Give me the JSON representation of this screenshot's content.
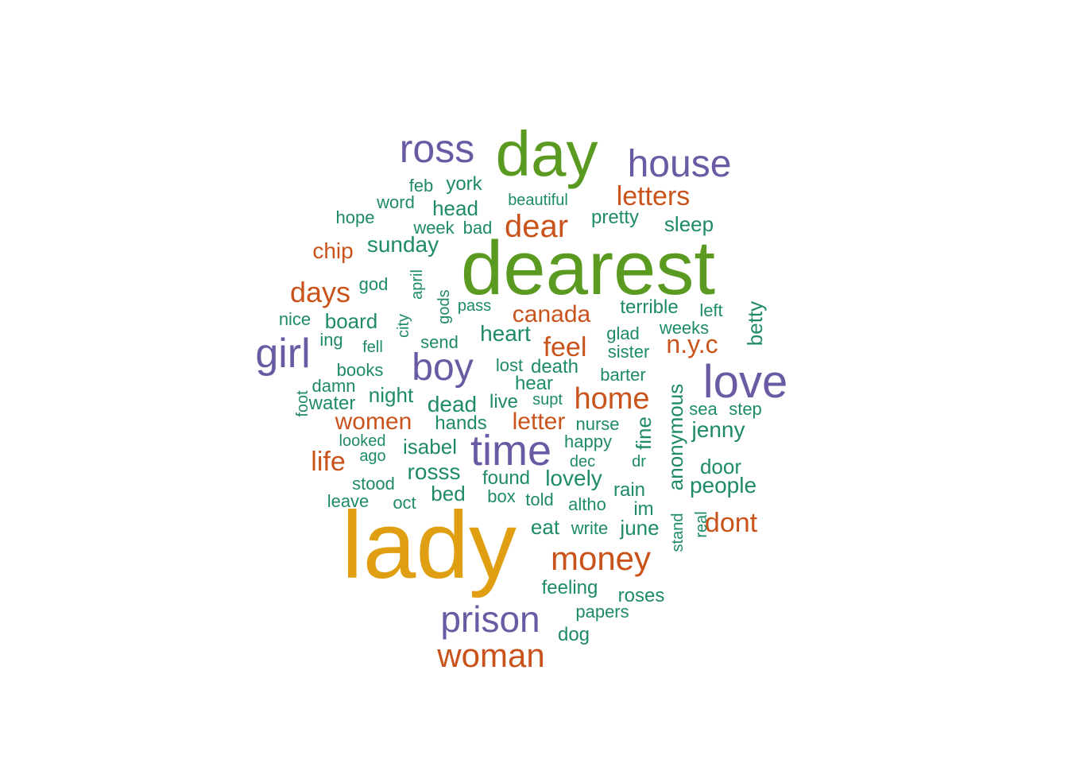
{
  "palette": {
    "gold": "#e09f12",
    "green": "#5a9a21",
    "purple": "#6a5aa3",
    "orange": "#c9531b",
    "teal": "#1e8a6a"
  },
  "words": [
    {
      "text": "lady",
      "color": "gold"
    },
    {
      "text": "dearest",
      "color": "green"
    },
    {
      "text": "day",
      "color": "green"
    },
    {
      "text": "ross",
      "color": "purple"
    },
    {
      "text": "house",
      "color": "purple"
    },
    {
      "text": "girl",
      "color": "purple"
    },
    {
      "text": "love",
      "color": "purple"
    },
    {
      "text": "boy",
      "color": "purple"
    },
    {
      "text": "time",
      "color": "purple"
    },
    {
      "text": "prison",
      "color": "purple"
    },
    {
      "text": "woman",
      "color": "orange"
    },
    {
      "text": "money",
      "color": "orange"
    },
    {
      "text": "dear",
      "color": "orange"
    },
    {
      "text": "letters",
      "color": "orange"
    },
    {
      "text": "home",
      "color": "orange"
    },
    {
      "text": "days",
      "color": "orange"
    },
    {
      "text": "feel",
      "color": "orange"
    },
    {
      "text": "n.y.c",
      "color": "orange"
    },
    {
      "text": "canada",
      "color": "orange"
    },
    {
      "text": "women",
      "color": "orange"
    },
    {
      "text": "letter",
      "color": "orange"
    },
    {
      "text": "life",
      "color": "orange"
    },
    {
      "text": "dont",
      "color": "orange"
    },
    {
      "text": "chip",
      "color": "orange"
    },
    {
      "text": "feb",
      "color": "teal"
    },
    {
      "text": "york",
      "color": "teal"
    },
    {
      "text": "word",
      "color": "teal"
    },
    {
      "text": "beautiful",
      "color": "teal"
    },
    {
      "text": "hope",
      "color": "teal"
    },
    {
      "text": "head",
      "color": "teal"
    },
    {
      "text": "pretty",
      "color": "teal"
    },
    {
      "text": "week",
      "color": "teal"
    },
    {
      "text": "bad",
      "color": "teal"
    },
    {
      "text": "sleep",
      "color": "teal"
    },
    {
      "text": "sunday",
      "color": "teal"
    },
    {
      "text": "god",
      "color": "teal"
    },
    {
      "text": "april",
      "color": "teal"
    },
    {
      "text": "gods",
      "color": "teal"
    },
    {
      "text": "pass",
      "color": "teal"
    },
    {
      "text": "terrible",
      "color": "teal"
    },
    {
      "text": "left",
      "color": "teal"
    },
    {
      "text": "betty",
      "color": "teal"
    },
    {
      "text": "nice",
      "color": "teal"
    },
    {
      "text": "board",
      "color": "teal"
    },
    {
      "text": "city",
      "color": "teal"
    },
    {
      "text": "heart",
      "color": "teal"
    },
    {
      "text": "glad",
      "color": "teal"
    },
    {
      "text": "weeks",
      "color": "teal"
    },
    {
      "text": "ing",
      "color": "teal"
    },
    {
      "text": "fell",
      "color": "teal"
    },
    {
      "text": "send",
      "color": "teal"
    },
    {
      "text": "sister",
      "color": "teal"
    },
    {
      "text": "books",
      "color": "teal"
    },
    {
      "text": "lost",
      "color": "teal"
    },
    {
      "text": "death",
      "color": "teal"
    },
    {
      "text": "barter",
      "color": "teal"
    },
    {
      "text": "damn",
      "color": "teal"
    },
    {
      "text": "foot",
      "color": "teal"
    },
    {
      "text": "night",
      "color": "teal"
    },
    {
      "text": "hear",
      "color": "teal"
    },
    {
      "text": "water",
      "color": "teal"
    },
    {
      "text": "dead",
      "color": "teal"
    },
    {
      "text": "live",
      "color": "teal"
    },
    {
      "text": "supt",
      "color": "teal"
    },
    {
      "text": "anonymous",
      "color": "teal"
    },
    {
      "text": "sea",
      "color": "teal"
    },
    {
      "text": "step",
      "color": "teal"
    },
    {
      "text": "hands",
      "color": "teal"
    },
    {
      "text": "nurse",
      "color": "teal"
    },
    {
      "text": "fine",
      "color": "teal"
    },
    {
      "text": "jenny",
      "color": "teal"
    },
    {
      "text": "looked",
      "color": "teal"
    },
    {
      "text": "isabel",
      "color": "teal"
    },
    {
      "text": "happy",
      "color": "teal"
    },
    {
      "text": "ago",
      "color": "teal"
    },
    {
      "text": "dec",
      "color": "teal"
    },
    {
      "text": "dr",
      "color": "teal"
    },
    {
      "text": "door",
      "color": "teal"
    },
    {
      "text": "rosss",
      "color": "teal"
    },
    {
      "text": "found",
      "color": "teal"
    },
    {
      "text": "lovely",
      "color": "teal"
    },
    {
      "text": "stood",
      "color": "teal"
    },
    {
      "text": "people",
      "color": "teal"
    },
    {
      "text": "rain",
      "color": "teal"
    },
    {
      "text": "bed",
      "color": "teal"
    },
    {
      "text": "box",
      "color": "teal"
    },
    {
      "text": "leave",
      "color": "teal"
    },
    {
      "text": "oct",
      "color": "teal"
    },
    {
      "text": "told",
      "color": "teal"
    },
    {
      "text": "altho",
      "color": "teal"
    },
    {
      "text": "im",
      "color": "teal"
    },
    {
      "text": "real",
      "color": "teal"
    },
    {
      "text": "stand",
      "color": "teal"
    },
    {
      "text": "eat",
      "color": "teal"
    },
    {
      "text": "write",
      "color": "teal"
    },
    {
      "text": "june",
      "color": "teal"
    },
    {
      "text": "feeling",
      "color": "teal"
    },
    {
      "text": "roses",
      "color": "teal"
    },
    {
      "text": "papers",
      "color": "teal"
    },
    {
      "text": "dog",
      "color": "teal"
    }
  ]
}
